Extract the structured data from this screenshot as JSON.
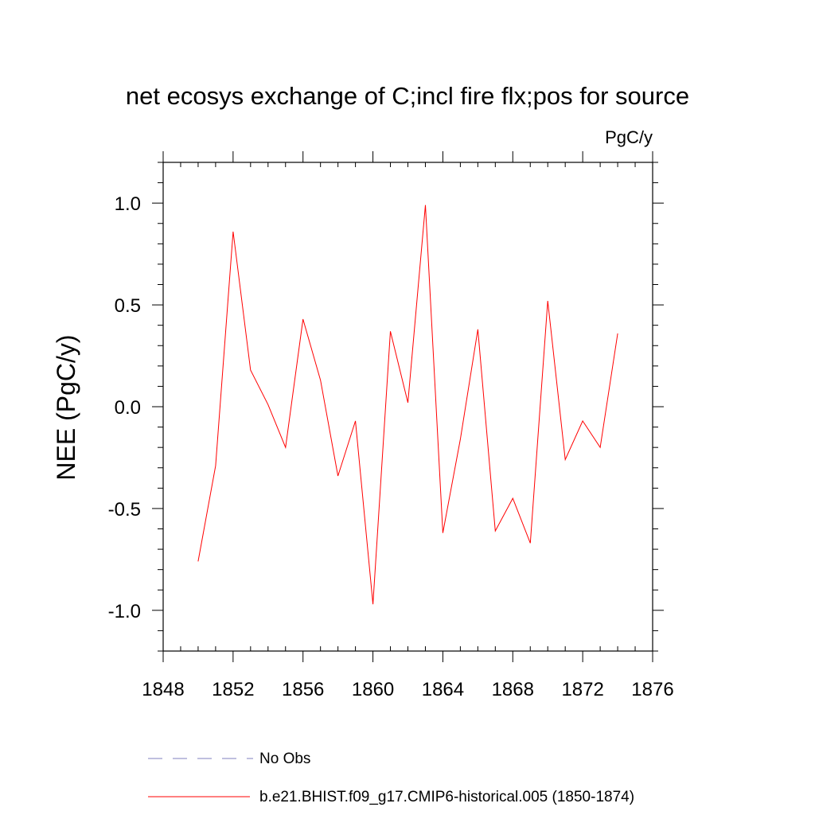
{
  "chart_data": {
    "type": "line",
    "title": "net ecosys exchange of C;incl fire flx;pos for source",
    "units_label": "PgC/y",
    "xlabel": "",
    "ylabel": "NEE  (PgC/y)",
    "xlim": [
      1848,
      1876
    ],
    "ylim": [
      -1.2,
      1.2
    ],
    "x_ticks": [
      1848,
      1852,
      1856,
      1860,
      1864,
      1868,
      1872,
      1876
    ],
    "x_tick_labels": [
      "1848",
      "1852",
      "1856",
      "1860",
      "1864",
      "1868",
      "1872",
      "1876"
    ],
    "y_ticks": [
      -1.0,
      -0.5,
      0.0,
      0.5,
      1.0
    ],
    "y_tick_labels": [
      "-1.0",
      "-0.5",
      "0.0",
      "0.5",
      "1.0"
    ],
    "grid": false,
    "legend_position": "bottom",
    "series": [
      {
        "name": "b.e21.BHIST.f09_g17.CMIP6-historical.005 (1850-1874)",
        "color": "#ff0000",
        "style": "solid",
        "x": [
          1850,
          1851,
          1852,
          1853,
          1854,
          1855,
          1856,
          1857,
          1858,
          1859,
          1860,
          1861,
          1862,
          1863,
          1864,
          1865,
          1866,
          1867,
          1868,
          1869,
          1870,
          1871,
          1872,
          1873,
          1874
        ],
        "y": [
          -0.76,
          -0.29,
          0.86,
          0.18,
          0.01,
          -0.2,
          0.43,
          0.13,
          -0.34,
          -0.07,
          -0.97,
          0.37,
          0.02,
          0.99,
          -0.62,
          -0.16,
          0.38,
          -0.61,
          -0.45,
          -0.67,
          0.52,
          -0.26,
          -0.07,
          -0.2,
          0.36
        ]
      }
    ],
    "legend": [
      {
        "label": "No Obs",
        "color": "#7f7fbf",
        "style": "dashed"
      },
      {
        "label": "b.e21.BHIST.f09_g17.CMIP6-historical.005 (1850-1874)",
        "color": "#ff0000",
        "style": "solid"
      }
    ]
  }
}
